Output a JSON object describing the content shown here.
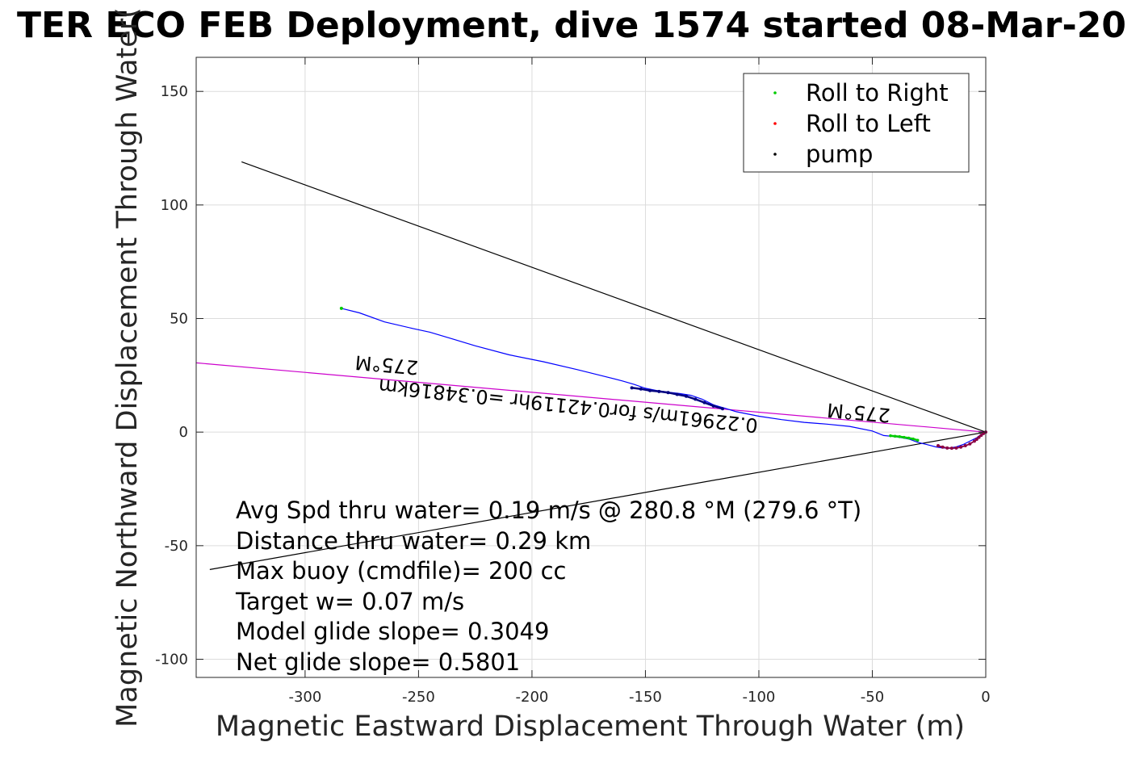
{
  "figure": {
    "title": "TER ECO FEB Deployment, dive 1574 started 08-Mar-20",
    "xlabel": "Magnetic Eastward Displacement Through Water (m)",
    "ylabel": "Magnetic Northward Displacement Through Water("
  },
  "chart_data": {
    "type": "line",
    "title": "TER ECO FEB Deployment, dive 1574 started 08-Mar-20",
    "xlabel": "Magnetic Eastward Displacement Through Water (m)",
    "ylabel": "Magnetic Northward Displacement Through Water(",
    "xlim": [
      -348,
      0
    ],
    "ylim": [
      -108,
      165
    ],
    "xticks": [
      -300,
      -250,
      -200,
      -150,
      -100,
      -50,
      0
    ],
    "yticks": [
      -100,
      -50,
      0,
      50,
      100,
      150
    ],
    "xtick_labels": [
      "-300",
      "-250",
      "-200",
      "-150",
      "-100",
      "-50",
      "0"
    ],
    "ytick_labels": [
      "-100",
      "-50",
      "0",
      "50",
      "100",
      "150"
    ],
    "grid": true,
    "legend": {
      "location": "top-right",
      "entries": [
        {
          "label": "Roll to Right",
          "color": "#00cc00",
          "marker": "dot"
        },
        {
          "label": "Roll to Left",
          "color": "#ff0000",
          "marker": "dot"
        },
        {
          "label": "pump",
          "color": "#000000",
          "marker": "dot"
        }
      ]
    },
    "track": {
      "color": "#0000ff",
      "x": [
        -284,
        -276,
        -265,
        -252,
        -245,
        -235,
        -225,
        -210,
        -195,
        -180,
        -170,
        -160,
        -155,
        -150,
        -145,
        -140,
        -135,
        -130,
        -125,
        -120,
        -115,
        -110,
        -100,
        -90,
        -80,
        -70,
        -60,
        -50,
        -45,
        -40,
        -37,
        -34,
        -30,
        -26,
        -22,
        -19,
        -16,
        -13,
        -10,
        -7,
        -4,
        -2,
        0
      ],
      "y": [
        54.5,
        52.5,
        48.5,
        45.5,
        44,
        41,
        38,
        34,
        31,
        27.5,
        25,
        22.5,
        21,
        19.3,
        18.3,
        17.6,
        17,
        16.2,
        14.5,
        12,
        10.5,
        9,
        7,
        5.5,
        4.3,
        3.5,
        2.5,
        0.5,
        -1.5,
        -2,
        -2.5,
        -3,
        -4.5,
        -5.5,
        -6.5,
        -7,
        -7,
        -6.5,
        -5.5,
        -4,
        -2.5,
        -1,
        0
      ]
    },
    "pump_segment": {
      "color": "#000080",
      "x": [
        -156,
        -152,
        -148,
        -144,
        -140,
        -136,
        -132,
        -128,
        -124,
        -120,
        -116
      ],
      "y": [
        19.5,
        19,
        18.3,
        17.9,
        17.4,
        16.6,
        15.8,
        14.5,
        13,
        11.5,
        10.3
      ]
    },
    "roll_right_segment": {
      "color": "#00cc00",
      "x": [
        -42,
        -40,
        -38,
        -36,
        -34,
        -32,
        -30
      ],
      "y": [
        -1.6,
        -1.8,
        -2,
        -2.3,
        -2.6,
        -3,
        -3.6
      ]
    },
    "surface_curve": {
      "color": "#8b0045",
      "x": [
        -21,
        -19,
        -17,
        -15,
        -13,
        -11,
        -9,
        -7,
        -5,
        -4,
        -3,
        -2,
        -1,
        0
      ],
      "y": [
        -6,
        -6.6,
        -7,
        -7.1,
        -7,
        -6.6,
        -6,
        -5.2,
        -4,
        -3.2,
        -2.3,
        -1.4,
        -0.6,
        0
      ]
    },
    "start_marker": {
      "x": -284,
      "y": 54.5,
      "color": "#00cc00"
    },
    "reference_lines": [
      {
        "name": "heading-line",
        "x": [
          -348,
          0
        ],
        "y": [
          30.5,
          0
        ],
        "color": "#cc00cc"
      },
      {
        "name": "upper-bound-line",
        "x": [
          -328,
          0
        ],
        "y": [
          119,
          0
        ],
        "color": "#000000"
      },
      {
        "name": "lower-bound-line",
        "x": [
          -342,
          0
        ],
        "y": [
          -60.5,
          0
        ],
        "color": "#000000"
      }
    ],
    "annotations": [
      {
        "text": "275°M",
        "x": -264,
        "y": 30,
        "rotation": 185
      },
      {
        "text": "275°M",
        "x": -56,
        "y": 9,
        "rotation": 185
      },
      {
        "text": "0.22961m/s for0.42119hr =0.34816km",
        "x": -184,
        "y": 12,
        "rotation": 186
      }
    ],
    "stats": [
      "Avg Spd thru water=  0.19 m/s @ 280.8 °M (279.6 °T)",
      "Distance thru water=  0.29 km",
      "Max buoy (cmdfile)= 200 cc",
      "Target w= 0.07 m/s",
      "Model glide slope= 0.3049",
      "Net glide slope= 0.5801"
    ]
  }
}
